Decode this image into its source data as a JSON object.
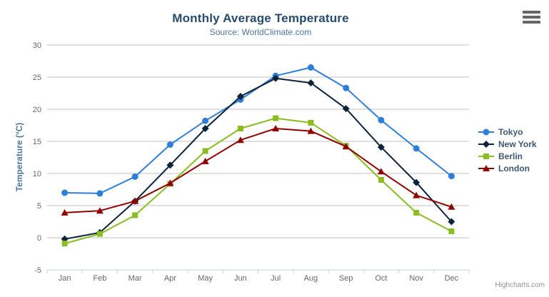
{
  "header": {
    "title": "Monthly Average Temperature",
    "subtitle": "Source: WorldClimate.com"
  },
  "credits": "Highcharts.com",
  "colors": {
    "title": "#274b6d",
    "subtitle": "#4d759e",
    "axis_label": "#666666",
    "grid_line": "#C0C0C0",
    "axis_line": "#C0D0E0",
    "legend_text": "#3E576F",
    "credits_text": "#909090"
  },
  "chart_data": {
    "type": "line",
    "title": "Monthly Average Temperature",
    "subtitle": "Source: WorldClimate.com",
    "xlabel": "",
    "ylabel": "Temperature (°C)",
    "ylim": [
      -5,
      30
    ],
    "ytick_step": 5,
    "grid": true,
    "legend_position": "right",
    "categories": [
      "Jan",
      "Feb",
      "Mar",
      "Apr",
      "May",
      "Jun",
      "Jul",
      "Aug",
      "Sep",
      "Oct",
      "Nov",
      "Dec"
    ],
    "series": [
      {
        "name": "Tokyo",
        "color": "#2f7ed8",
        "marker": "circle",
        "values": [
          7.0,
          6.9,
          9.5,
          14.5,
          18.2,
          21.5,
          25.2,
          26.5,
          23.3,
          18.3,
          13.9,
          9.6
        ]
      },
      {
        "name": "New York",
        "color": "#0d233a",
        "marker": "diamond",
        "values": [
          -0.2,
          0.8,
          5.7,
          11.3,
          17.0,
          22.0,
          24.8,
          24.1,
          20.1,
          14.1,
          8.6,
          2.5
        ]
      },
      {
        "name": "Berlin",
        "color": "#8bbc21",
        "marker": "square",
        "values": [
          -0.9,
          0.6,
          3.5,
          8.4,
          13.5,
          17.0,
          18.6,
          17.9,
          14.3,
          9.0,
          3.9,
          1.0
        ]
      },
      {
        "name": "London",
        "color": "#910000",
        "marker": "triangle",
        "values": [
          3.9,
          4.2,
          5.7,
          8.5,
          11.9,
          15.2,
          17.0,
          16.6,
          14.2,
          10.3,
          6.6,
          4.8
        ]
      }
    ]
  }
}
